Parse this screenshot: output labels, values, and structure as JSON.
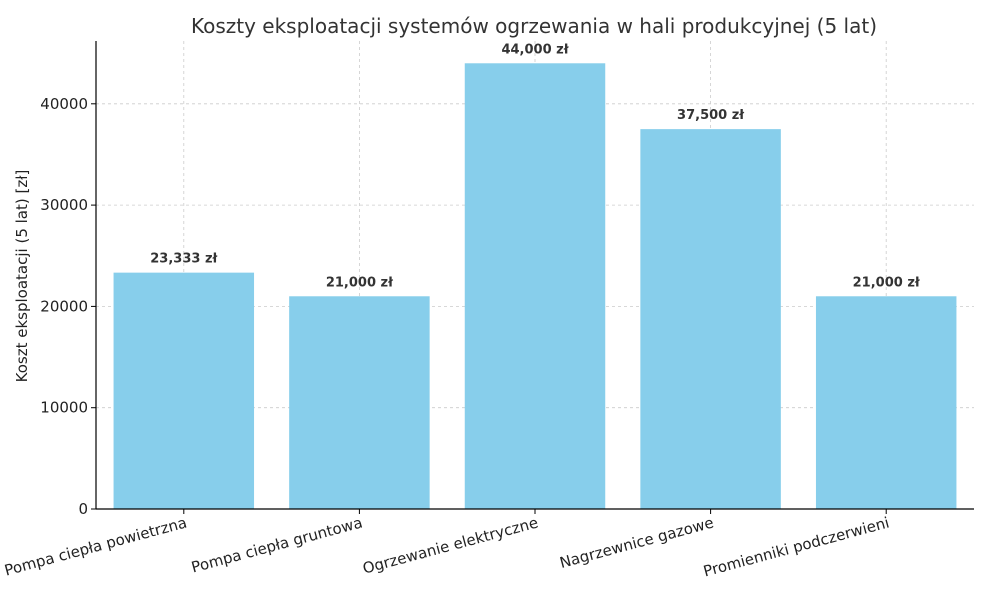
{
  "chart_data": {
    "type": "bar",
    "title": "Koszty eksploatacji systemów ogrzewania w hali produkcyjnej (5 lat)",
    "xlabel": "",
    "ylabel": "Koszt eksploatacji (5 lat) [zł]",
    "categories": [
      "Pompa ciepła powietrzna",
      "Pompa ciepła gruntowa",
      "Ogrzewanie elektryczne",
      "Nagrzewnice gazowe",
      "Promienniki podczerwieni"
    ],
    "values": [
      23333,
      21000,
      44000,
      37500,
      21000
    ],
    "data_labels": [
      "23,333 zł",
      "21,000 zł",
      "44,000 zł",
      "37,500 zł",
      "21,000 zł"
    ],
    "yticks": [
      0,
      10000,
      20000,
      30000,
      40000
    ],
    "ylim": [
      0,
      46200
    ],
    "grid": true,
    "bar_color": "#87CEEB"
  }
}
